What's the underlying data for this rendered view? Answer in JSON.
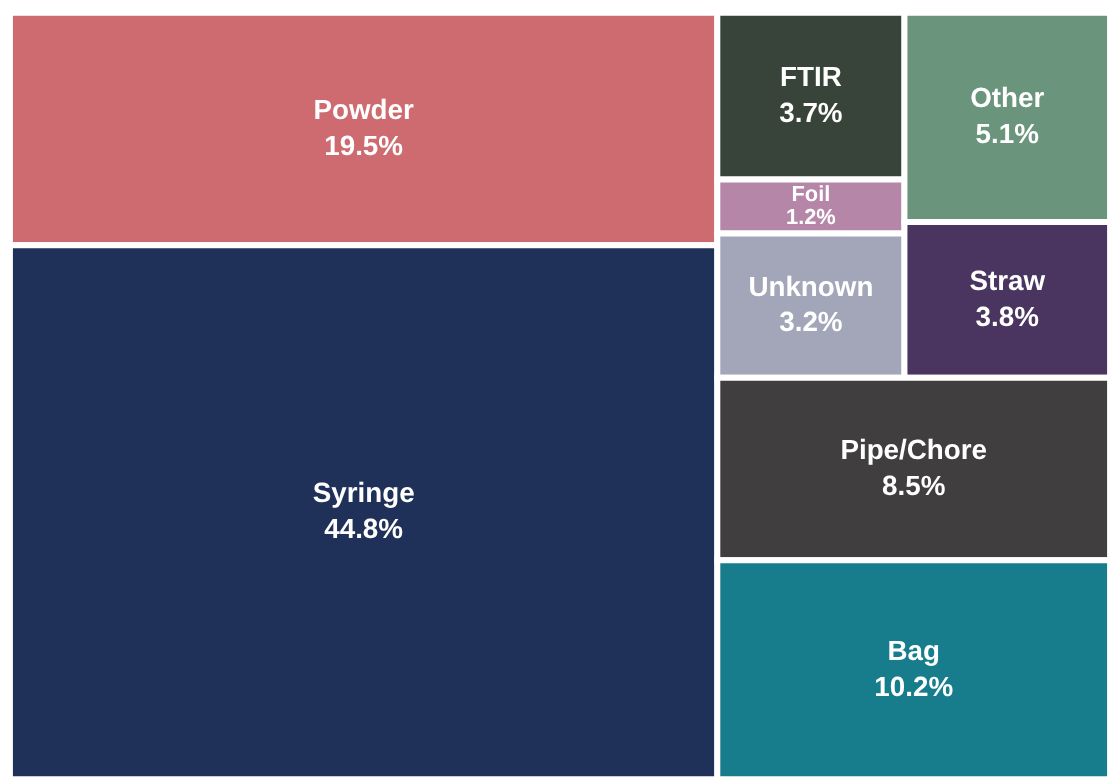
{
  "chart_data": {
    "type": "other",
    "categories": [
      "Powder",
      "Syringe",
      "FTIR",
      "Foil",
      "Unknown",
      "Other",
      "Straw",
      "Pipe/Chore",
      "Bag"
    ],
    "values": [
      19.5,
      44.8,
      3.7,
      1.2,
      3.2,
      5.1,
      3.8,
      8.5,
      10.2
    ],
    "value_labels": [
      "19.5%",
      "44.8%",
      "3.7%",
      "1.2%",
      "3.2%",
      "5.1%",
      "3.8%",
      "8.5%",
      "10.2%"
    ],
    "colors": [
      "#cd6b70",
      "#1f3159",
      "#38443a",
      "#b586a8",
      "#a3a6b8",
      "#6a957c",
      "#4a3560",
      "#403e3e",
      "#177c8c"
    ]
  }
}
